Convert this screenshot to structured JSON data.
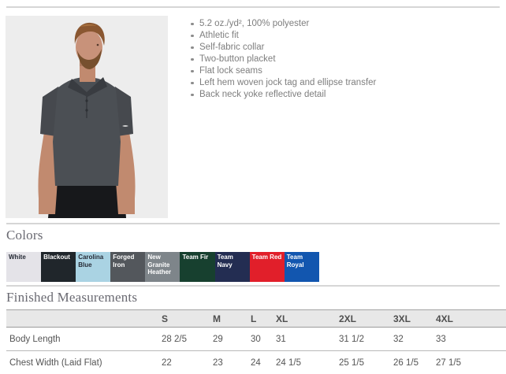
{
  "product": {
    "features": [
      "5.2 oz./yd², 100% polyester",
      "Athletic fit",
      "Self-fabric collar",
      "Two-button placket",
      "Flat lock seams",
      "Left hem woven jock tag and ellipse transfer",
      "Back neck yoke reflective detail"
    ]
  },
  "colors": {
    "heading": "Colors",
    "swatches": [
      {
        "name": "White",
        "bg": "#e4e3e8",
        "text_color": "#262b36"
      },
      {
        "name": "Blackout",
        "bg": "#20262b",
        "text_color": "#ffffff"
      },
      {
        "name": "Carolina Blue",
        "bg": "#aad3e3",
        "text_color": "#262b36"
      },
      {
        "name": "Forged Iron",
        "bg": "#53575c",
        "text_color": "#ffffff"
      },
      {
        "name": "New Granite Heather",
        "bg": "#7e858a",
        "text_color": "#ffffff"
      },
      {
        "name": "Team Fir",
        "bg": "#17402f",
        "text_color": "#ffffff"
      },
      {
        "name": "Team Navy",
        "bg": "#232d52",
        "text_color": "#ffffff"
      },
      {
        "name": "Team Red",
        "bg": "#e11f2a",
        "text_color": "#ffffff"
      },
      {
        "name": "Team Royal",
        "bg": "#1256af",
        "text_color": "#ffffff"
      }
    ]
  },
  "measurements": {
    "heading": "Finished Measurements",
    "columns": [
      "",
      "S",
      "M",
      "L",
      "XL",
      "2XL",
      "3XL",
      "4XL"
    ],
    "rows": [
      {
        "label": "Body Length",
        "values": [
          "28 2/5",
          "29",
          "30",
          "31",
          "31 1/2",
          "32",
          "33"
        ]
      },
      {
        "label": "Chest Width (Laid Flat)",
        "values": [
          "22",
          "23",
          "24",
          "24 1/5",
          "25 1/5",
          "26 1/5",
          "27 1/5"
        ]
      }
    ]
  }
}
